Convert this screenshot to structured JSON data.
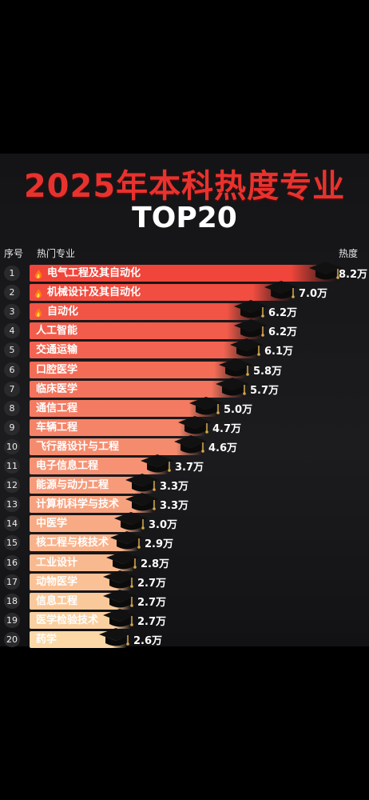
{
  "title": "2025年本科热度专业",
  "subtitle": "TOP20",
  "header": {
    "rank": "序号",
    "major": "热门专业",
    "heat": "热度"
  },
  "colors": {
    "bar_top": "#f0453a",
    "bar_bottom": "#fbd8a6",
    "title": "#e8322e"
  },
  "chart_data": {
    "type": "bar",
    "orientation": "horizontal",
    "title": "2025年本科热度专业",
    "subtitle": "TOP20",
    "unit": "万",
    "hot_markers": [
      "电气工程及其自动化",
      "机械设计及其自动化",
      "自动化"
    ],
    "ranks": [
      "1",
      "2",
      "3",
      "4",
      "5",
      "6",
      "7",
      "8",
      "9",
      "10",
      "11",
      "12",
      "13",
      "14",
      "15",
      "16",
      "17",
      "18",
      "19",
      "20"
    ],
    "categories": [
      "电气工程及其自动化",
      "机械设计及其自动化",
      "自动化",
      "人工智能",
      "交通运输",
      "口腔医学",
      "临床医学",
      "通信工程",
      "车辆工程",
      "飞行器设计与工程",
      "电子信息工程",
      "能源与动力工程",
      "计算机科学与技术",
      "中医学",
      "核工程与核技术",
      "工业设计",
      "动物医学",
      "信息工程",
      "医学检验技术",
      "药学"
    ],
    "values": [
      8.2,
      7.0,
      6.2,
      6.2,
      6.1,
      5.8,
      5.7,
      5.0,
      4.7,
      4.6,
      3.7,
      3.3,
      3.3,
      3.0,
      2.9,
      2.8,
      2.7,
      2.7,
      2.7,
      2.6
    ],
    "value_labels": [
      "8.2万",
      "7.0万",
      "6.2万",
      "6.2万",
      "6.1万",
      "5.8万",
      "5.7万",
      "5.0万",
      "4.7万",
      "4.6万",
      "3.7万",
      "3.3万",
      "3.3万",
      "3.0万",
      "2.9万",
      "2.8万",
      "2.7万",
      "2.7万",
      "2.7万",
      "2.6万"
    ]
  }
}
